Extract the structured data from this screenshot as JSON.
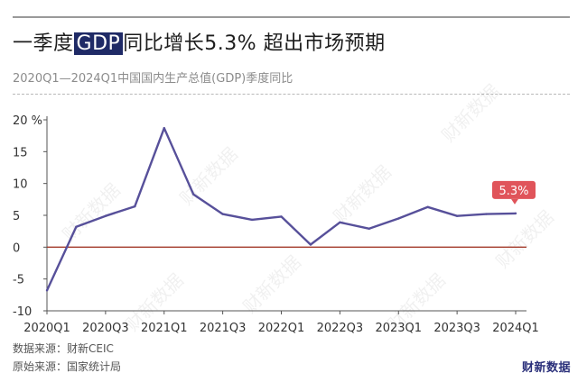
{
  "title": {
    "prefix": "一季度",
    "highlight": "GDP",
    "suffix": "同比增长5.3% 超出市场预期"
  },
  "subtitle": "2020Q1—2024Q1中国国内生产总值(GDP)季度同比",
  "footer": {
    "source_data": "数据来源：财新CEIC",
    "source_origin": "原始来源：国家统计局"
  },
  "brand": "财新数据",
  "watermark": "财新数据",
  "colors": {
    "line": "#57509a",
    "zero_line": "#a33a2a",
    "callout": "#e0545a",
    "title_highlight": "#1f2a66"
  },
  "chart_data": {
    "type": "line",
    "title": "一季度GDP同比增长5.3% 超出市场预期",
    "subtitle": "2020Q1—2024Q1中国国内生产总值(GDP)季度同比",
    "categories": [
      "2020Q1",
      "2020Q2",
      "2020Q3",
      "2020Q4",
      "2021Q1",
      "2021Q2",
      "2021Q3",
      "2021Q4",
      "2022Q1",
      "2022Q2",
      "2022Q3",
      "2022Q4",
      "2023Q1",
      "2023Q2",
      "2023Q3",
      "2023Q4",
      "2024Q1"
    ],
    "x_tick_labels": [
      "2020Q1",
      "2020Q3",
      "2021Q1",
      "2021Q3",
      "2022Q1",
      "2022Q3",
      "2023Q1",
      "2023Q3",
      "2024Q1"
    ],
    "series": [
      {
        "values": [
          -6.8,
          3.2,
          4.9,
          6.4,
          18.7,
          8.3,
          5.2,
          4.3,
          4.8,
          0.4,
          3.9,
          2.9,
          4.5,
          6.3,
          4.9,
          5.2,
          5.3
        ]
      }
    ],
    "ylim": [
      -10,
      20
    ],
    "y_ticks": [
      -10,
      -5,
      0,
      5,
      10,
      15,
      20
    ],
    "y_tick_labels": [
      "-10",
      "-5",
      "0",
      "5",
      "10",
      "15",
      "20 %"
    ],
    "annotation": {
      "category": "2024Q1",
      "text": "5.3%"
    },
    "grid": false,
    "reference_line": 0
  }
}
